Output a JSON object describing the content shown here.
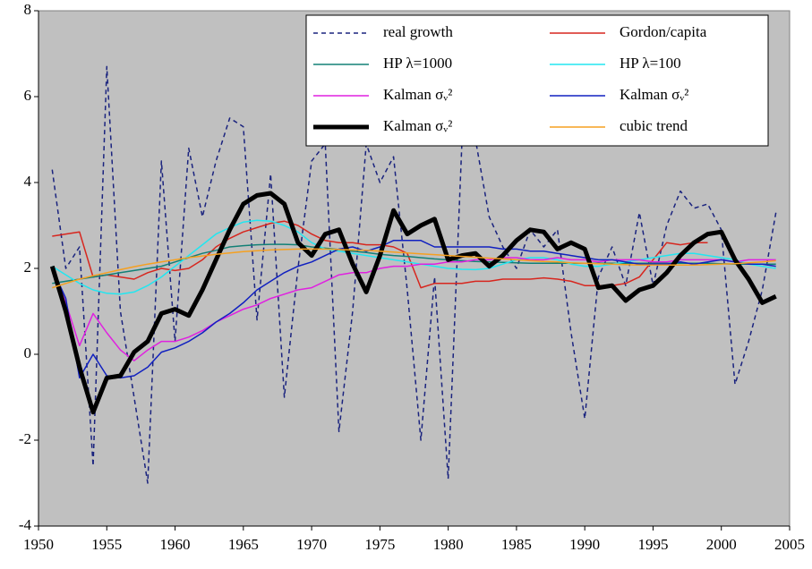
{
  "chart_data": {
    "type": "line",
    "x": [
      1951,
      1952,
      1953,
      1954,
      1955,
      1956,
      1957,
      1958,
      1959,
      1960,
      1961,
      1962,
      1963,
      1964,
      1965,
      1966,
      1967,
      1968,
      1969,
      1970,
      1971,
      1972,
      1973,
      1974,
      1975,
      1976,
      1977,
      1978,
      1979,
      1980,
      1981,
      1982,
      1983,
      1984,
      1985,
      1986,
      1987,
      1988,
      1989,
      1990,
      1991,
      1992,
      1993,
      1994,
      1995,
      1996,
      1997,
      1998,
      1999,
      2000,
      2001,
      2002,
      2003,
      2004
    ],
    "xlim": [
      1950,
      2005
    ],
    "xticks": [
      1950,
      1955,
      1960,
      1965,
      1970,
      1975,
      1980,
      1985,
      1990,
      1995,
      2000,
      2005
    ],
    "ylim": [
      -4,
      8
    ],
    "yticks": [
      -4,
      -2,
      0,
      2,
      4,
      6,
      8
    ],
    "legend": "top-right",
    "series": [
      {
        "name": "real growth",
        "color": "#1a237e",
        "linestyle": "dashed",
        "linewidth": 1.5,
        "values": [
          4.3,
          2.0,
          2.5,
          -2.6,
          6.7,
          1.0,
          -1.0,
          -3.0,
          4.5,
          0.3,
          4.8,
          3.2,
          4.5,
          5.5,
          5.3,
          0.8,
          4.2,
          -1.0,
          2.0,
          4.5,
          4.9,
          -1.8,
          1.0,
          4.9,
          4.0,
          4.6,
          1.5,
          -2.0,
          1.8,
          -2.9,
          4.9,
          5.0,
          3.2,
          2.5,
          2.0,
          2.9,
          2.5,
          2.9,
          0.5,
          -1.5,
          1.8,
          2.5,
          1.6,
          3.3,
          1.6,
          3.0,
          3.8,
          3.4,
          3.5,
          2.9,
          -0.7,
          0.3,
          1.5,
          3.3
        ]
      },
      {
        "name": "Gordon/capita",
        "color": "#d7261e",
        "linestyle": "solid",
        "linewidth": 1.5,
        "values": [
          2.75,
          2.8,
          2.85,
          1.8,
          1.85,
          1.8,
          1.75,
          1.9,
          2.0,
          1.95,
          2.0,
          2.2,
          2.5,
          2.7,
          2.85,
          2.95,
          3.05,
          3.1,
          3.0,
          2.8,
          2.65,
          2.6,
          2.6,
          2.55,
          2.55,
          2.5,
          2.35,
          1.55,
          1.65,
          1.65,
          1.65,
          1.7,
          1.7,
          1.75,
          1.75,
          1.75,
          1.78,
          1.75,
          1.7,
          1.6,
          1.6,
          1.6,
          1.65,
          1.8,
          2.2,
          2.6,
          2.55,
          2.6,
          2.6,
          null,
          null,
          null,
          null,
          null
        ]
      },
      {
        "name": "HP λ=1000",
        "color": "#128076",
        "linestyle": "solid",
        "linewidth": 1.5,
        "values": [
          1.65,
          1.7,
          1.75,
          1.8,
          1.85,
          1.9,
          1.95,
          2.0,
          2.05,
          2.15,
          2.25,
          2.35,
          2.42,
          2.5,
          2.53,
          2.55,
          2.56,
          2.56,
          2.55,
          2.5,
          2.47,
          2.44,
          2.4,
          2.37,
          2.33,
          2.3,
          2.28,
          2.25,
          2.22,
          2.2,
          2.18,
          2.16,
          2.15,
          2.14,
          2.13,
          2.12,
          2.12,
          2.12,
          2.12,
          2.12,
          2.12,
          2.12,
          2.12,
          2.12,
          2.12,
          2.12,
          2.12,
          2.12,
          2.12,
          2.11,
          2.1,
          2.1,
          2.1,
          2.1
        ]
      },
      {
        "name": "HP λ=100",
        "color": "#22e6f0",
        "linestyle": "solid",
        "linewidth": 1.5,
        "values": [
          2.05,
          1.85,
          1.65,
          1.5,
          1.42,
          1.4,
          1.45,
          1.6,
          1.8,
          2.05,
          2.3,
          2.55,
          2.8,
          2.95,
          3.08,
          3.12,
          3.1,
          3.0,
          2.85,
          2.6,
          2.45,
          2.4,
          2.35,
          2.3,
          2.25,
          2.2,
          2.15,
          2.1,
          2.05,
          2.0,
          1.98,
          1.97,
          2.0,
          2.1,
          2.2,
          2.25,
          2.25,
          2.2,
          2.1,
          2.05,
          2.05,
          2.1,
          2.15,
          2.2,
          2.25,
          2.3,
          2.35,
          2.35,
          2.3,
          2.25,
          2.2,
          2.1,
          2.05,
          2.0
        ]
      },
      {
        "name": "Kalman σᵥ²",
        "color": "#e020e0",
        "linestyle": "solid",
        "linewidth": 1.5,
        "values": [
          2.0,
          1.2,
          0.2,
          0.95,
          0.5,
          0.1,
          -0.15,
          0.1,
          0.3,
          0.3,
          0.4,
          0.55,
          0.75,
          0.9,
          1.05,
          1.15,
          1.3,
          1.4,
          1.5,
          1.55,
          1.7,
          1.85,
          1.9,
          1.9,
          2.0,
          2.05,
          2.05,
          2.1,
          2.1,
          2.15,
          2.15,
          2.2,
          2.2,
          2.25,
          2.25,
          2.2,
          2.2,
          2.25,
          2.2,
          2.2,
          2.15,
          2.2,
          2.2,
          2.2,
          2.15,
          2.15,
          2.2,
          2.2,
          2.2,
          2.2,
          2.15,
          2.2,
          2.2,
          2.2
        ]
      },
      {
        "name": "Kalman σᵥ²",
        "color": "#1020c0",
        "linestyle": "solid",
        "linewidth": 1.5,
        "values": [
          2.0,
          1.3,
          -0.55,
          0.0,
          -0.5,
          -0.55,
          -0.5,
          -0.3,
          0.05,
          0.15,
          0.3,
          0.5,
          0.75,
          0.95,
          1.2,
          1.5,
          1.7,
          1.9,
          2.05,
          2.15,
          2.3,
          2.45,
          2.5,
          2.4,
          2.5,
          2.65,
          2.65,
          2.65,
          2.5,
          2.5,
          2.5,
          2.5,
          2.5,
          2.45,
          2.45,
          2.4,
          2.4,
          2.35,
          2.3,
          2.25,
          2.2,
          2.2,
          2.15,
          2.1,
          2.1,
          2.1,
          2.15,
          2.1,
          2.15,
          2.2,
          2.15,
          2.1,
          2.1,
          2.05
        ]
      },
      {
        "name": "Kalman σᵥ²",
        "color": "#000000",
        "linestyle": "solid",
        "linewidth": 5,
        "values": [
          2.05,
          1.0,
          -0.3,
          -1.35,
          -0.55,
          -0.5,
          0.05,
          0.3,
          0.95,
          1.05,
          0.9,
          1.5,
          2.2,
          2.9,
          3.5,
          3.7,
          3.75,
          3.5,
          2.6,
          2.3,
          2.8,
          2.9,
          2.1,
          1.45,
          2.3,
          3.35,
          2.8,
          3.0,
          3.15,
          2.2,
          2.3,
          2.35,
          2.05,
          2.3,
          2.65,
          2.9,
          2.85,
          2.45,
          2.6,
          2.45,
          1.55,
          1.6,
          1.25,
          1.5,
          1.6,
          1.9,
          2.3,
          2.6,
          2.8,
          2.85,
          2.2,
          1.75,
          1.2,
          1.35
        ]
      },
      {
        "name": "cubic trend",
        "color": "#f5a020",
        "linestyle": "solid",
        "linewidth": 1.5,
        "values": [
          1.55,
          1.65,
          1.75,
          1.83,
          1.9,
          1.97,
          2.04,
          2.1,
          2.15,
          2.2,
          2.25,
          2.29,
          2.33,
          2.36,
          2.39,
          2.41,
          2.43,
          2.44,
          2.45,
          2.45,
          2.45,
          2.44,
          2.43,
          2.42,
          2.4,
          2.38,
          2.36,
          2.34,
          2.32,
          2.3,
          2.28,
          2.26,
          2.24,
          2.22,
          2.2,
          2.18,
          2.16,
          2.15,
          2.13,
          2.12,
          2.11,
          2.1,
          2.09,
          2.08,
          2.08,
          2.08,
          2.08,
          2.08,
          2.09,
          2.1,
          2.11,
          2.13,
          2.15,
          2.18
        ]
      }
    ]
  }
}
